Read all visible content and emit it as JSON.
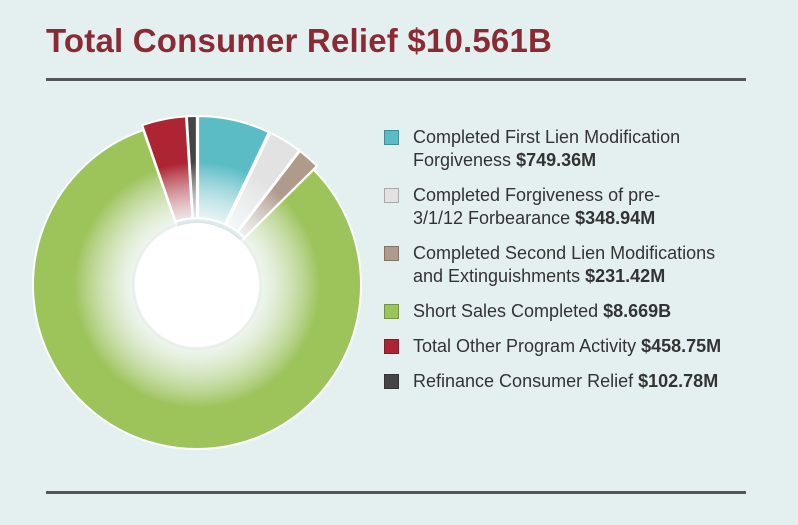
{
  "title": "Total Consumer Relief $10.561B",
  "chart_data": {
    "type": "pie",
    "title": "Total Consumer Relief $10.561B",
    "series": [
      {
        "label_lines": [
          "Completed First Lien Modification",
          "Forgiveness"
        ],
        "amount": "$749.36M",
        "value": 749.36,
        "color": "#5bbcc6"
      },
      {
        "label_lines": [
          "Completed Forgiveness of pre-",
          "3/1/12 Forbearance"
        ],
        "amount": "$348.94M",
        "value": 348.94,
        "color": "#e2e2e2"
      },
      {
        "label_lines": [
          "Completed Second Lien Modifications",
          "and Extinguishments"
        ],
        "amount": "$231.42M",
        "value": 231.42,
        "color": "#b09a8c"
      },
      {
        "label_lines": [
          "Short Sales Completed"
        ],
        "amount": "$8.669B",
        "value": 8669,
        "color": "#9dc35b"
      },
      {
        "label_lines": [
          "Total Other Program Activity"
        ],
        "amount": "$458.75M",
        "value": 458.75,
        "color": "#ad2432"
      },
      {
        "label_lines": [
          "Refinance Consumer Relief"
        ],
        "amount": "$102.78M",
        "value": 102.78,
        "color": "#444444"
      }
    ]
  }
}
